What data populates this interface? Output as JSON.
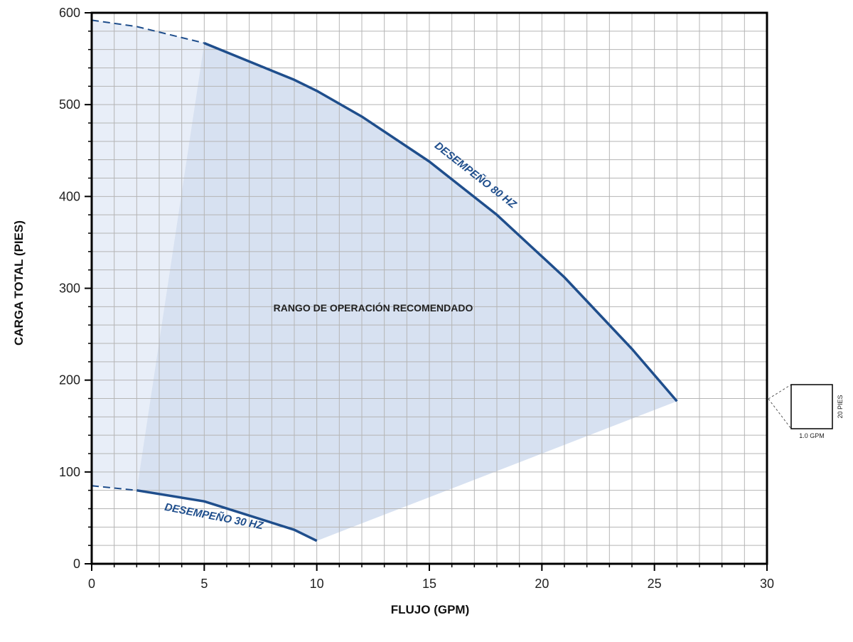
{
  "colors": {
    "curve": "#1f4e8c",
    "region_fill": "#c9d7ec",
    "region_light": "#e8eef8",
    "grid": "#b5b5b5",
    "axis": "#000000"
  },
  "chart_data": {
    "type": "line",
    "xlabel": "FLUJO (GPM)",
    "ylabel": "CARGA TOTAL (PIES)",
    "xlim": [
      0,
      30
    ],
    "ylim": [
      0,
      600
    ],
    "x_ticks": [
      "0",
      "5",
      "10",
      "15",
      "20",
      "25",
      "30"
    ],
    "y_ticks": [
      "0",
      "100",
      "200",
      "300",
      "400",
      "500",
      "600"
    ],
    "grid": true,
    "series": [
      {
        "name": "DESEMPEÑO 80 HZ",
        "x": [
          5,
          9,
          10,
          12,
          15,
          18,
          21,
          24,
          26
        ],
        "y": [
          567,
          527,
          515,
          487,
          438,
          380,
          312,
          234,
          177
        ],
        "extension": {
          "x": [
            0,
            2,
            5
          ],
          "y": [
            592,
            585,
            567
          ]
        }
      },
      {
        "name": "DESEMPEÑO 30 HZ",
        "x": [
          2,
          5,
          9,
          10
        ],
        "y": [
          80,
          68,
          37,
          25
        ],
        "extension": {
          "x": [
            0,
            2
          ],
          "y": [
            85,
            80
          ]
        }
      }
    ],
    "annotations": [
      "RANGO DE OPERACIÓN RECOMENDADO"
    ],
    "grid_scale": {
      "width_label": "1.0 GPM",
      "height_label": "20 PIES"
    }
  }
}
